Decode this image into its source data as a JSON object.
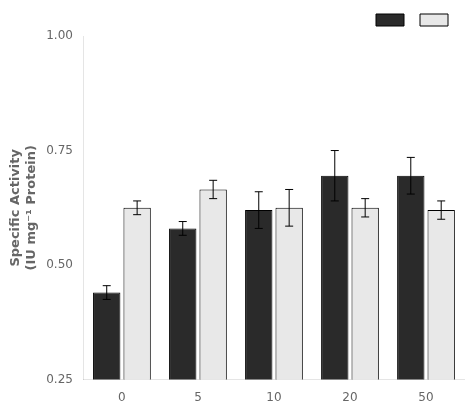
{
  "chart_data": {
    "type": "bar",
    "y_label": "Specific Activity\n(IU mg⁻¹ Protein)",
    "categories": [
      0,
      5,
      10,
      20,
      50
    ],
    "series": [
      {
        "color": "#2a2a2a",
        "values": [
          0.44,
          0.58,
          0.62,
          0.695,
          0.695
        ],
        "errors": [
          0.015,
          0.015,
          0.04,
          0.055,
          0.04
        ]
      },
      {
        "color": "#e8e8e8",
        "values": [
          0.625,
          0.665,
          0.625,
          0.625,
          0.62
        ],
        "errors": [
          0.015,
          0.02,
          0.04,
          0.02,
          0.02
        ]
      }
    ],
    "ylim": [
      0.25,
      1.0
    ],
    "yticks": [
      0.25,
      {
        "value": 0.5,
        "label": "0.50"
      },
      0.75,
      {
        "value": 1.0,
        "label": "1.00"
      }
    ],
    "grid": false,
    "legend": "upper right"
  }
}
